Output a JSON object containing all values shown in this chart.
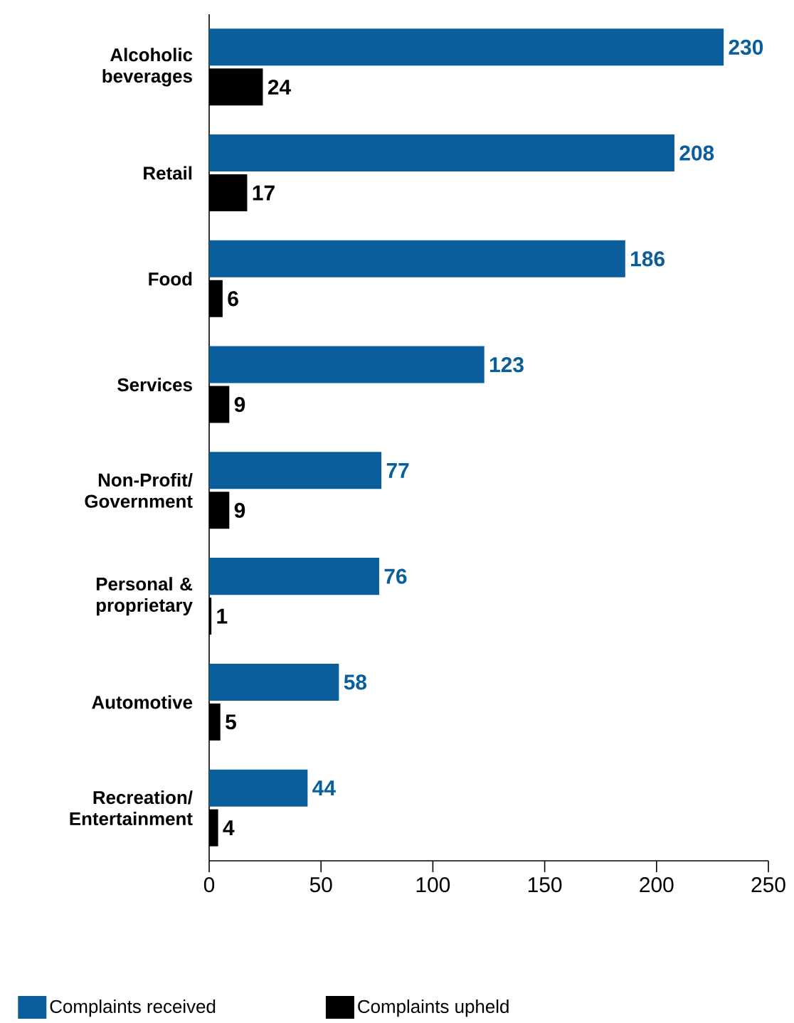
{
  "chart_data": {
    "type": "bar",
    "orientation": "horizontal",
    "categories": [
      "Alcoholic beverages",
      "Retail",
      "Food",
      "Services",
      "Non-Profit/ Government",
      "Personal & proprietary",
      "Automotive",
      "Recreation/ Entertainment"
    ],
    "series": [
      {
        "name": "Complaints received",
        "color": "#0a5e9c",
        "values": [
          230,
          208,
          186,
          123,
          77,
          76,
          58,
          44
        ]
      },
      {
        "name": "Complaints upheld",
        "color": "#000000",
        "values": [
          24,
          17,
          6,
          9,
          9,
          1,
          5,
          4
        ]
      }
    ],
    "xlim": [
      0,
      250
    ],
    "xticks": [
      0,
      50,
      100,
      150,
      200,
      250
    ],
    "data_labels": true,
    "grid": false,
    "legend": "bottom"
  }
}
